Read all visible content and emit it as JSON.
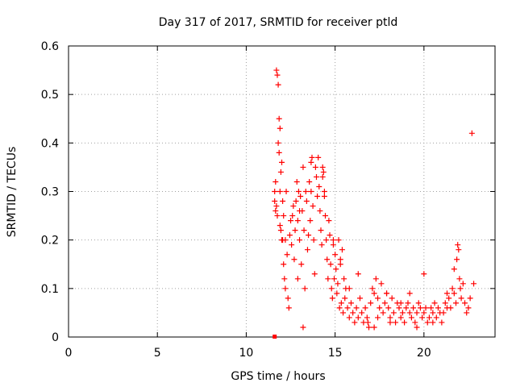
{
  "chart_data": {
    "type": "scatter",
    "title": "Day 317 of 2017, SRMTID for receiver ptld",
    "xlabel": "GPS time / hours",
    "ylabel": "SRMTID / TECUs",
    "xlim": [
      0,
      24
    ],
    "ylim": [
      0,
      0.6
    ],
    "xticks": [
      0,
      5,
      10,
      15,
      20
    ],
    "yticks": [
      0,
      0.1,
      0.2,
      0.3,
      0.4,
      0.5,
      0.6
    ],
    "xtick_labels": [
      "0",
      "5",
      "10",
      "15",
      "20"
    ],
    "ytick_labels": [
      "0",
      "0.1",
      "0.2",
      "0.3",
      "0.4",
      "0.5",
      "0.6"
    ],
    "grid": true,
    "marker": "+",
    "color": "#ff0000",
    "series": [
      {
        "name": "SRMTID",
        "x": [
          11.6,
          11.6,
          11.65,
          11.65,
          11.7,
          11.7,
          11.75,
          11.75,
          11.8,
          11.8,
          11.85,
          11.85,
          11.9,
          11.9,
          11.95,
          11.95,
          12.0,
          12.0,
          12.05,
          12.1,
          12.1,
          12.15,
          12.2,
          12.2,
          12.25,
          12.3,
          12.35,
          12.4,
          12.45,
          12.5,
          12.55,
          12.6,
          12.65,
          12.7,
          12.75,
          12.8,
          12.85,
          12.9,
          12.95,
          13.0,
          13.05,
          13.1,
          13.15,
          13.2,
          13.25,
          13.3,
          13.35,
          13.4,
          13.45,
          13.5,
          13.55,
          13.6,
          13.65,
          13.7,
          13.75,
          13.8,
          13.85,
          13.9,
          13.95,
          14.0,
          14.05,
          14.1,
          14.15,
          14.2,
          14.25,
          14.3,
          14.35,
          14.4,
          14.45,
          14.5,
          14.55,
          14.6,
          14.65,
          14.7,
          14.75,
          14.8,
          14.85,
          14.9,
          14.95,
          15.0,
          15.05,
          15.1,
          15.15,
          15.2,
          15.25,
          15.3,
          15.35,
          15.4,
          15.45,
          15.5,
          15.55,
          15.6,
          15.7,
          15.8,
          15.9,
          16.0,
          16.1,
          16.2,
          16.3,
          16.4,
          16.5,
          16.6,
          16.7,
          16.8,
          16.9,
          17.0,
          17.1,
          17.2,
          17.3,
          17.4,
          17.5,
          17.6,
          17.7,
          17.8,
          17.9,
          18.0,
          18.1,
          18.2,
          18.3,
          18.4,
          18.5,
          18.6,
          18.7,
          18.8,
          18.9,
          19.0,
          19.1,
          19.2,
          19.3,
          19.4,
          19.5,
          19.6,
          19.7,
          19.8,
          19.9,
          20.0,
          20.1,
          20.2,
          20.3,
          20.4,
          20.5,
          20.6,
          20.7,
          20.8,
          20.9,
          21.0,
          21.1,
          21.2,
          21.3,
          21.4,
          21.5,
          21.6,
          21.7,
          21.8,
          21.85,
          21.9,
          21.95,
          22.0,
          22.05,
          22.1,
          22.2,
          22.3,
          22.4,
          22.5,
          22.6,
          22.7,
          13.65,
          14.3,
          14.4,
          11.9,
          12.05,
          12.9,
          13.2,
          16.85,
          17.2,
          17.4,
          18.1,
          19.6,
          20.5,
          21.3,
          22.8,
          15.8,
          16.3,
          17.9,
          18.7,
          19.2,
          20.0,
          21.7,
          14.9,
          15.3,
          13.0
        ],
        "y": [
          0.28,
          0.3,
          0.26,
          0.32,
          0.27,
          0.55,
          0.25,
          0.54,
          0.4,
          0.52,
          0.38,
          0.45,
          0.3,
          0.43,
          0.22,
          0.34,
          0.2,
          0.36,
          0.28,
          0.15,
          0.25,
          0.12,
          0.1,
          0.2,
          0.3,
          0.17,
          0.08,
          0.06,
          0.21,
          0.24,
          0.19,
          0.25,
          0.27,
          0.16,
          0.22,
          0.28,
          0.32,
          0.12,
          0.3,
          0.2,
          0.29,
          0.15,
          0.26,
          0.35,
          0.22,
          0.1,
          0.3,
          0.28,
          0.18,
          0.21,
          0.32,
          0.24,
          0.3,
          0.37,
          0.27,
          0.2,
          0.13,
          0.35,
          0.33,
          0.29,
          0.37,
          0.31,
          0.26,
          0.22,
          0.19,
          0.35,
          0.34,
          0.3,
          0.25,
          0.2,
          0.16,
          0.12,
          0.24,
          0.21,
          0.15,
          0.1,
          0.08,
          0.19,
          0.12,
          0.17,
          0.14,
          0.09,
          0.11,
          0.2,
          0.06,
          0.15,
          0.07,
          0.18,
          0.05,
          0.12,
          0.08,
          0.1,
          0.06,
          0.04,
          0.07,
          0.05,
          0.03,
          0.06,
          0.04,
          0.08,
          0.05,
          0.03,
          0.06,
          0.04,
          0.02,
          0.07,
          0.1,
          0.09,
          0.12,
          0.08,
          0.06,
          0.11,
          0.05,
          0.07,
          0.09,
          0.06,
          0.04,
          0.08,
          0.05,
          0.03,
          0.07,
          0.06,
          0.04,
          0.05,
          0.03,
          0.06,
          0.07,
          0.05,
          0.04,
          0.06,
          0.03,
          0.05,
          0.07,
          0.06,
          0.04,
          0.05,
          0.06,
          0.03,
          0.04,
          0.06,
          0.05,
          0.07,
          0.04,
          0.06,
          0.05,
          0.03,
          0.05,
          0.07,
          0.06,
          0.08,
          0.06,
          0.1,
          0.09,
          0.07,
          0.16,
          0.19,
          0.18,
          0.12,
          0.1,
          0.08,
          0.11,
          0.07,
          0.05,
          0.06,
          0.08,
          0.42,
          0.36,
          0.33,
          0.29,
          0.23,
          0.2,
          0.24,
          0.02,
          0.03,
          0.02,
          0.04,
          0.03,
          0.02,
          0.03,
          0.09,
          0.11,
          0.1,
          0.13,
          0.09,
          0.07,
          0.09,
          0.13,
          0.14,
          0.2,
          0.16,
          0.26
        ],
        "x_extra_zero": [
          11.6
        ],
        "y_extra_zero": [
          0.0
        ]
      }
    ]
  }
}
